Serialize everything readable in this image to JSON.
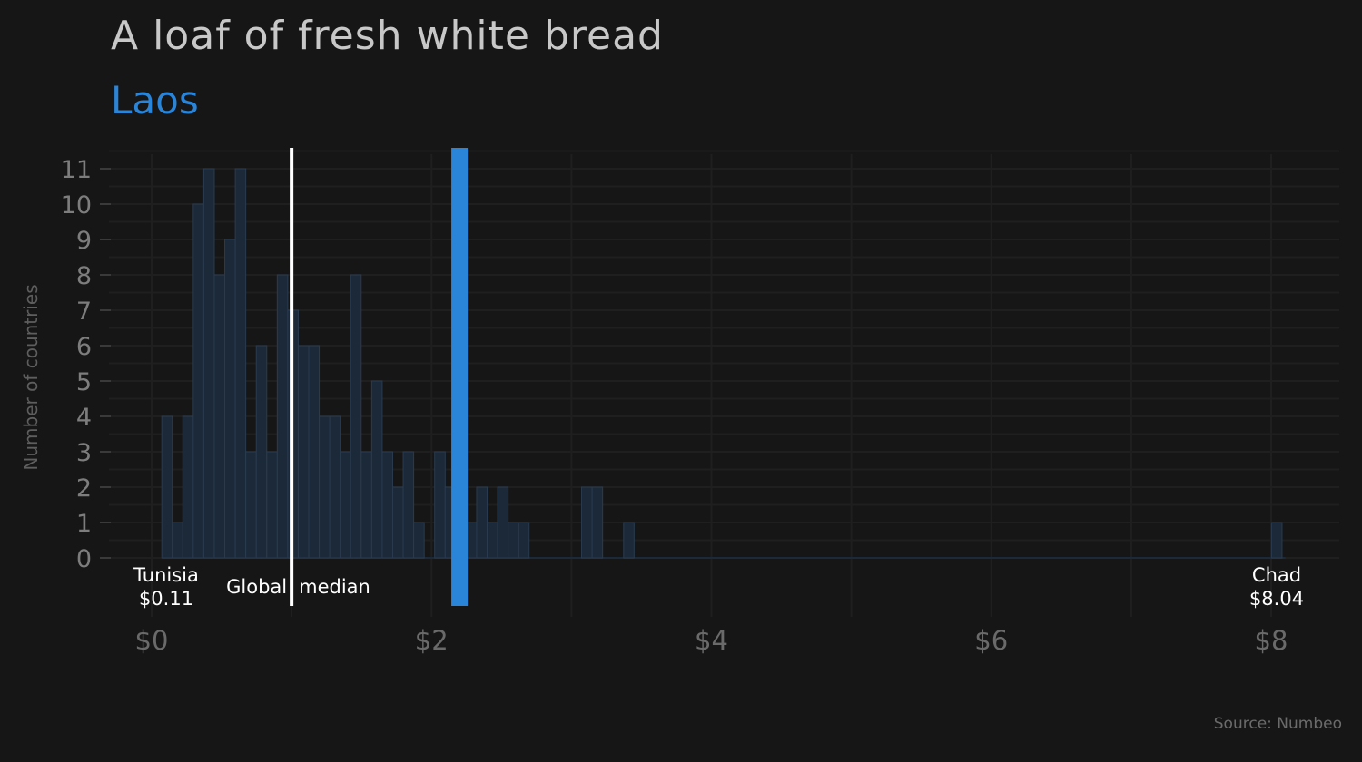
{
  "title": "A loaf of fresh white bread",
  "subtitle": "Laos",
  "source": "Source: Numbeo",
  "colors": {
    "background": "#161616",
    "highlight": "#2a84d8",
    "bars": "#1c2938",
    "median_line": "#ffffff"
  },
  "chart_data": {
    "type": "bar",
    "ylabel": "Number of countries",
    "xlim": [
      -0.2,
      8.5
    ],
    "ylim": [
      0,
      11.3
    ],
    "bin_width": 0.075,
    "x_ticks": [
      {
        "value": 0,
        "label": "$0"
      },
      {
        "value": 2,
        "label": "$2"
      },
      {
        "value": 4,
        "label": "$4"
      },
      {
        "value": 6,
        "label": "$6"
      },
      {
        "value": 8,
        "label": "$8"
      }
    ],
    "y_ticks": [
      0,
      1,
      2,
      3,
      4,
      5,
      6,
      7,
      8,
      9,
      10,
      11
    ],
    "bins": [
      {
        "x": 0.11,
        "count": 4
      },
      {
        "x": 0.185,
        "count": 1
      },
      {
        "x": 0.26,
        "count": 4
      },
      {
        "x": 0.335,
        "count": 10
      },
      {
        "x": 0.41,
        "count": 11
      },
      {
        "x": 0.485,
        "count": 8
      },
      {
        "x": 0.56,
        "count": 9
      },
      {
        "x": 0.635,
        "count": 11
      },
      {
        "x": 0.71,
        "count": 3
      },
      {
        "x": 0.785,
        "count": 6
      },
      {
        "x": 0.86,
        "count": 3
      },
      {
        "x": 0.935,
        "count": 8
      },
      {
        "x": 1.01,
        "count": 7
      },
      {
        "x": 1.085,
        "count": 6
      },
      {
        "x": 1.16,
        "count": 6
      },
      {
        "x": 1.235,
        "count": 4
      },
      {
        "x": 1.31,
        "count": 4
      },
      {
        "x": 1.385,
        "count": 3
      },
      {
        "x": 1.46,
        "count": 8
      },
      {
        "x": 1.535,
        "count": 3
      },
      {
        "x": 1.61,
        "count": 5
      },
      {
        "x": 1.685,
        "count": 3
      },
      {
        "x": 1.76,
        "count": 2
      },
      {
        "x": 1.835,
        "count": 3
      },
      {
        "x": 1.91,
        "count": 1
      },
      {
        "x": 2.06,
        "count": 3
      },
      {
        "x": 2.135,
        "count": 2
      },
      {
        "x": 2.285,
        "count": 1
      },
      {
        "x": 2.36,
        "count": 2
      },
      {
        "x": 2.435,
        "count": 1
      },
      {
        "x": 2.51,
        "count": 2
      },
      {
        "x": 2.585,
        "count": 1
      },
      {
        "x": 2.66,
        "count": 1
      },
      {
        "x": 3.11,
        "count": 2
      },
      {
        "x": 3.185,
        "count": 2
      },
      {
        "x": 3.41,
        "count": 1
      },
      {
        "x": 8.04,
        "count": 1
      }
    ],
    "median": {
      "value": 1.0,
      "label": "Global median"
    },
    "highlight": {
      "name": "Laos",
      "value": 2.2
    },
    "annotations": [
      {
        "country": "Tunisia",
        "price": "$0.11",
        "value": 0.11
      },
      {
        "country": "Chad",
        "price": "$8.04",
        "value": 8.04
      }
    ]
  }
}
